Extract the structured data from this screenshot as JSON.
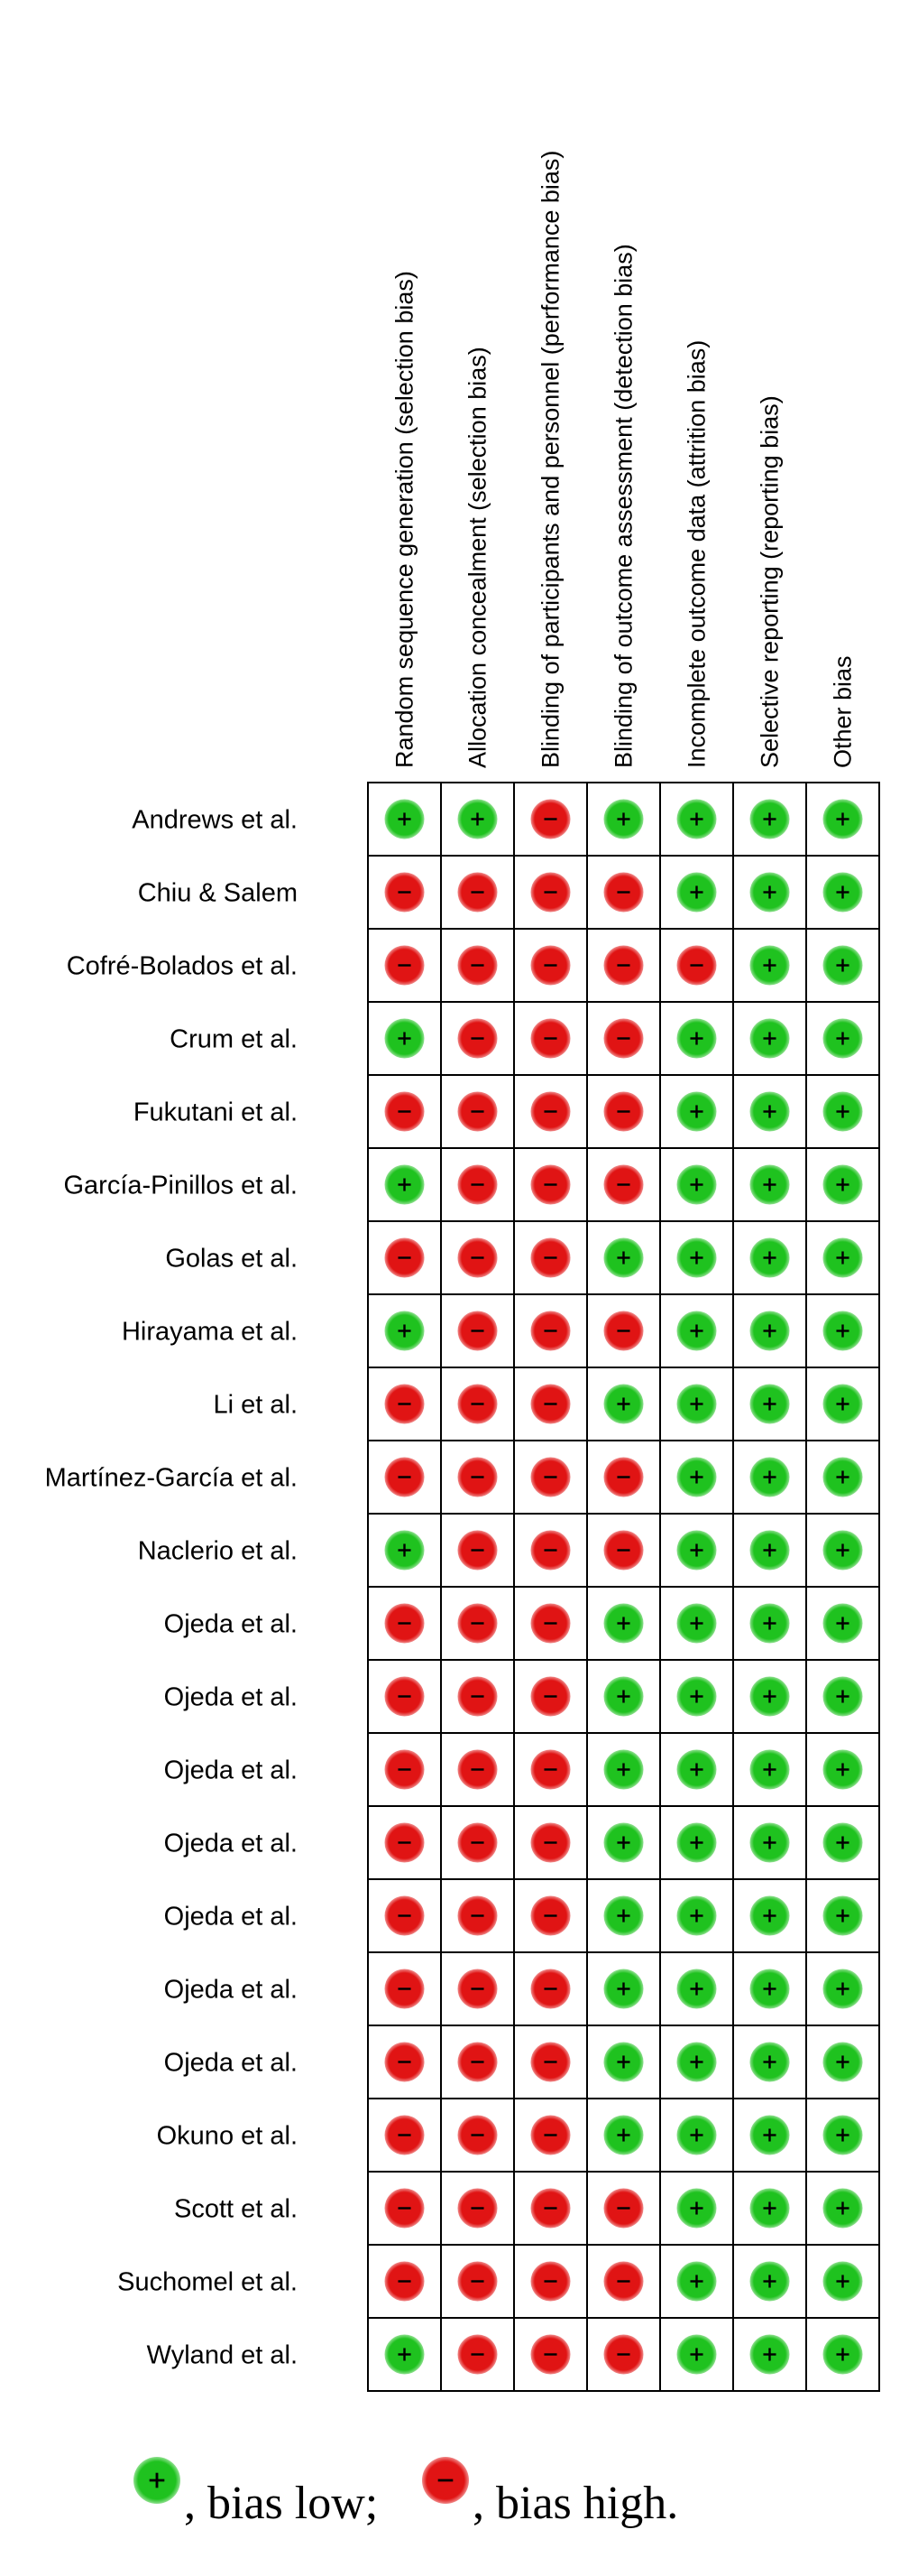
{
  "chart_data": {
    "type": "table",
    "columns": [
      "Random sequence generation (selection bias)",
      "Allocation concealment (selection bias)",
      "Blinding of participants and personnel (performance bias)",
      "Blinding of outcome assessment (detection bias)",
      "Incomplete outcome data (attrition bias)",
      "Selective reporting (reporting bias)",
      "Other bias"
    ],
    "rows": [
      {
        "study": "Andrews et al.",
        "ratings": [
          "+",
          "+",
          "-",
          "+",
          "+",
          "+",
          "+"
        ]
      },
      {
        "study": "Chiu & Salem",
        "ratings": [
          "-",
          "-",
          "-",
          "-",
          "+",
          "+",
          "+"
        ]
      },
      {
        "study": "Cofré-Bolados et al.",
        "ratings": [
          "-",
          "-",
          "-",
          "-",
          "-",
          "+",
          "+"
        ]
      },
      {
        "study": "Crum et al.",
        "ratings": [
          "+",
          "-",
          "-",
          "-",
          "+",
          "+",
          "+"
        ]
      },
      {
        "study": "Fukutani et al.",
        "ratings": [
          "-",
          "-",
          "-",
          "-",
          "+",
          "+",
          "+"
        ]
      },
      {
        "study": "García-Pinillos et al.",
        "ratings": [
          "+",
          "-",
          "-",
          "-",
          "+",
          "+",
          "+"
        ]
      },
      {
        "study": "Golas et al.",
        "ratings": [
          "-",
          "-",
          "-",
          "+",
          "+",
          "+",
          "+"
        ]
      },
      {
        "study": "Hirayama et al.",
        "ratings": [
          "+",
          "-",
          "-",
          "-",
          "+",
          "+",
          "+"
        ]
      },
      {
        "study": "Li et al.",
        "ratings": [
          "-",
          "-",
          "-",
          "+",
          "+",
          "+",
          "+"
        ]
      },
      {
        "study": "Martínez-García et al.",
        "ratings": [
          "-",
          "-",
          "-",
          "-",
          "+",
          "+",
          "+"
        ]
      },
      {
        "study": "Naclerio et al.",
        "ratings": [
          "+",
          "-",
          "-",
          "-",
          "+",
          "+",
          "+"
        ]
      },
      {
        "study": "Ojeda et al.",
        "ratings": [
          "-",
          "-",
          "-",
          "+",
          "+",
          "+",
          "+"
        ]
      },
      {
        "study": "Ojeda et al.",
        "ratings": [
          "-",
          "-",
          "-",
          "+",
          "+",
          "+",
          "+"
        ]
      },
      {
        "study": "Ojeda et al.",
        "ratings": [
          "-",
          "-",
          "-",
          "+",
          "+",
          "+",
          "+"
        ]
      },
      {
        "study": "Ojeda et al.",
        "ratings": [
          "-",
          "-",
          "-",
          "+",
          "+",
          "+",
          "+"
        ]
      },
      {
        "study": "Ojeda et al.",
        "ratings": [
          "-",
          "-",
          "-",
          "+",
          "+",
          "+",
          "+"
        ]
      },
      {
        "study": "Ojeda et al.",
        "ratings": [
          "-",
          "-",
          "-",
          "+",
          "+",
          "+",
          "+"
        ]
      },
      {
        "study": "Ojeda et al.",
        "ratings": [
          "-",
          "-",
          "-",
          "+",
          "+",
          "+",
          "+"
        ]
      },
      {
        "study": "Okuno et al.",
        "ratings": [
          "-",
          "-",
          "-",
          "+",
          "+",
          "+",
          "+"
        ]
      },
      {
        "study": "Scott et al.",
        "ratings": [
          "-",
          "-",
          "-",
          "-",
          "+",
          "+",
          "+"
        ]
      },
      {
        "study": "Suchomel et al.",
        "ratings": [
          "-",
          "-",
          "-",
          "-",
          "+",
          "+",
          "+"
        ]
      },
      {
        "study": "Wyland et al.",
        "ratings": [
          "+",
          "-",
          "-",
          "-",
          "+",
          "+",
          "+"
        ]
      }
    ],
    "legend": [
      {
        "symbol": "+",
        "label": ", bias low;"
      },
      {
        "symbol": "-",
        "label": ", bias high."
      }
    ],
    "colors": {
      "low": "#1fc21f",
      "high": "#e01414"
    }
  }
}
